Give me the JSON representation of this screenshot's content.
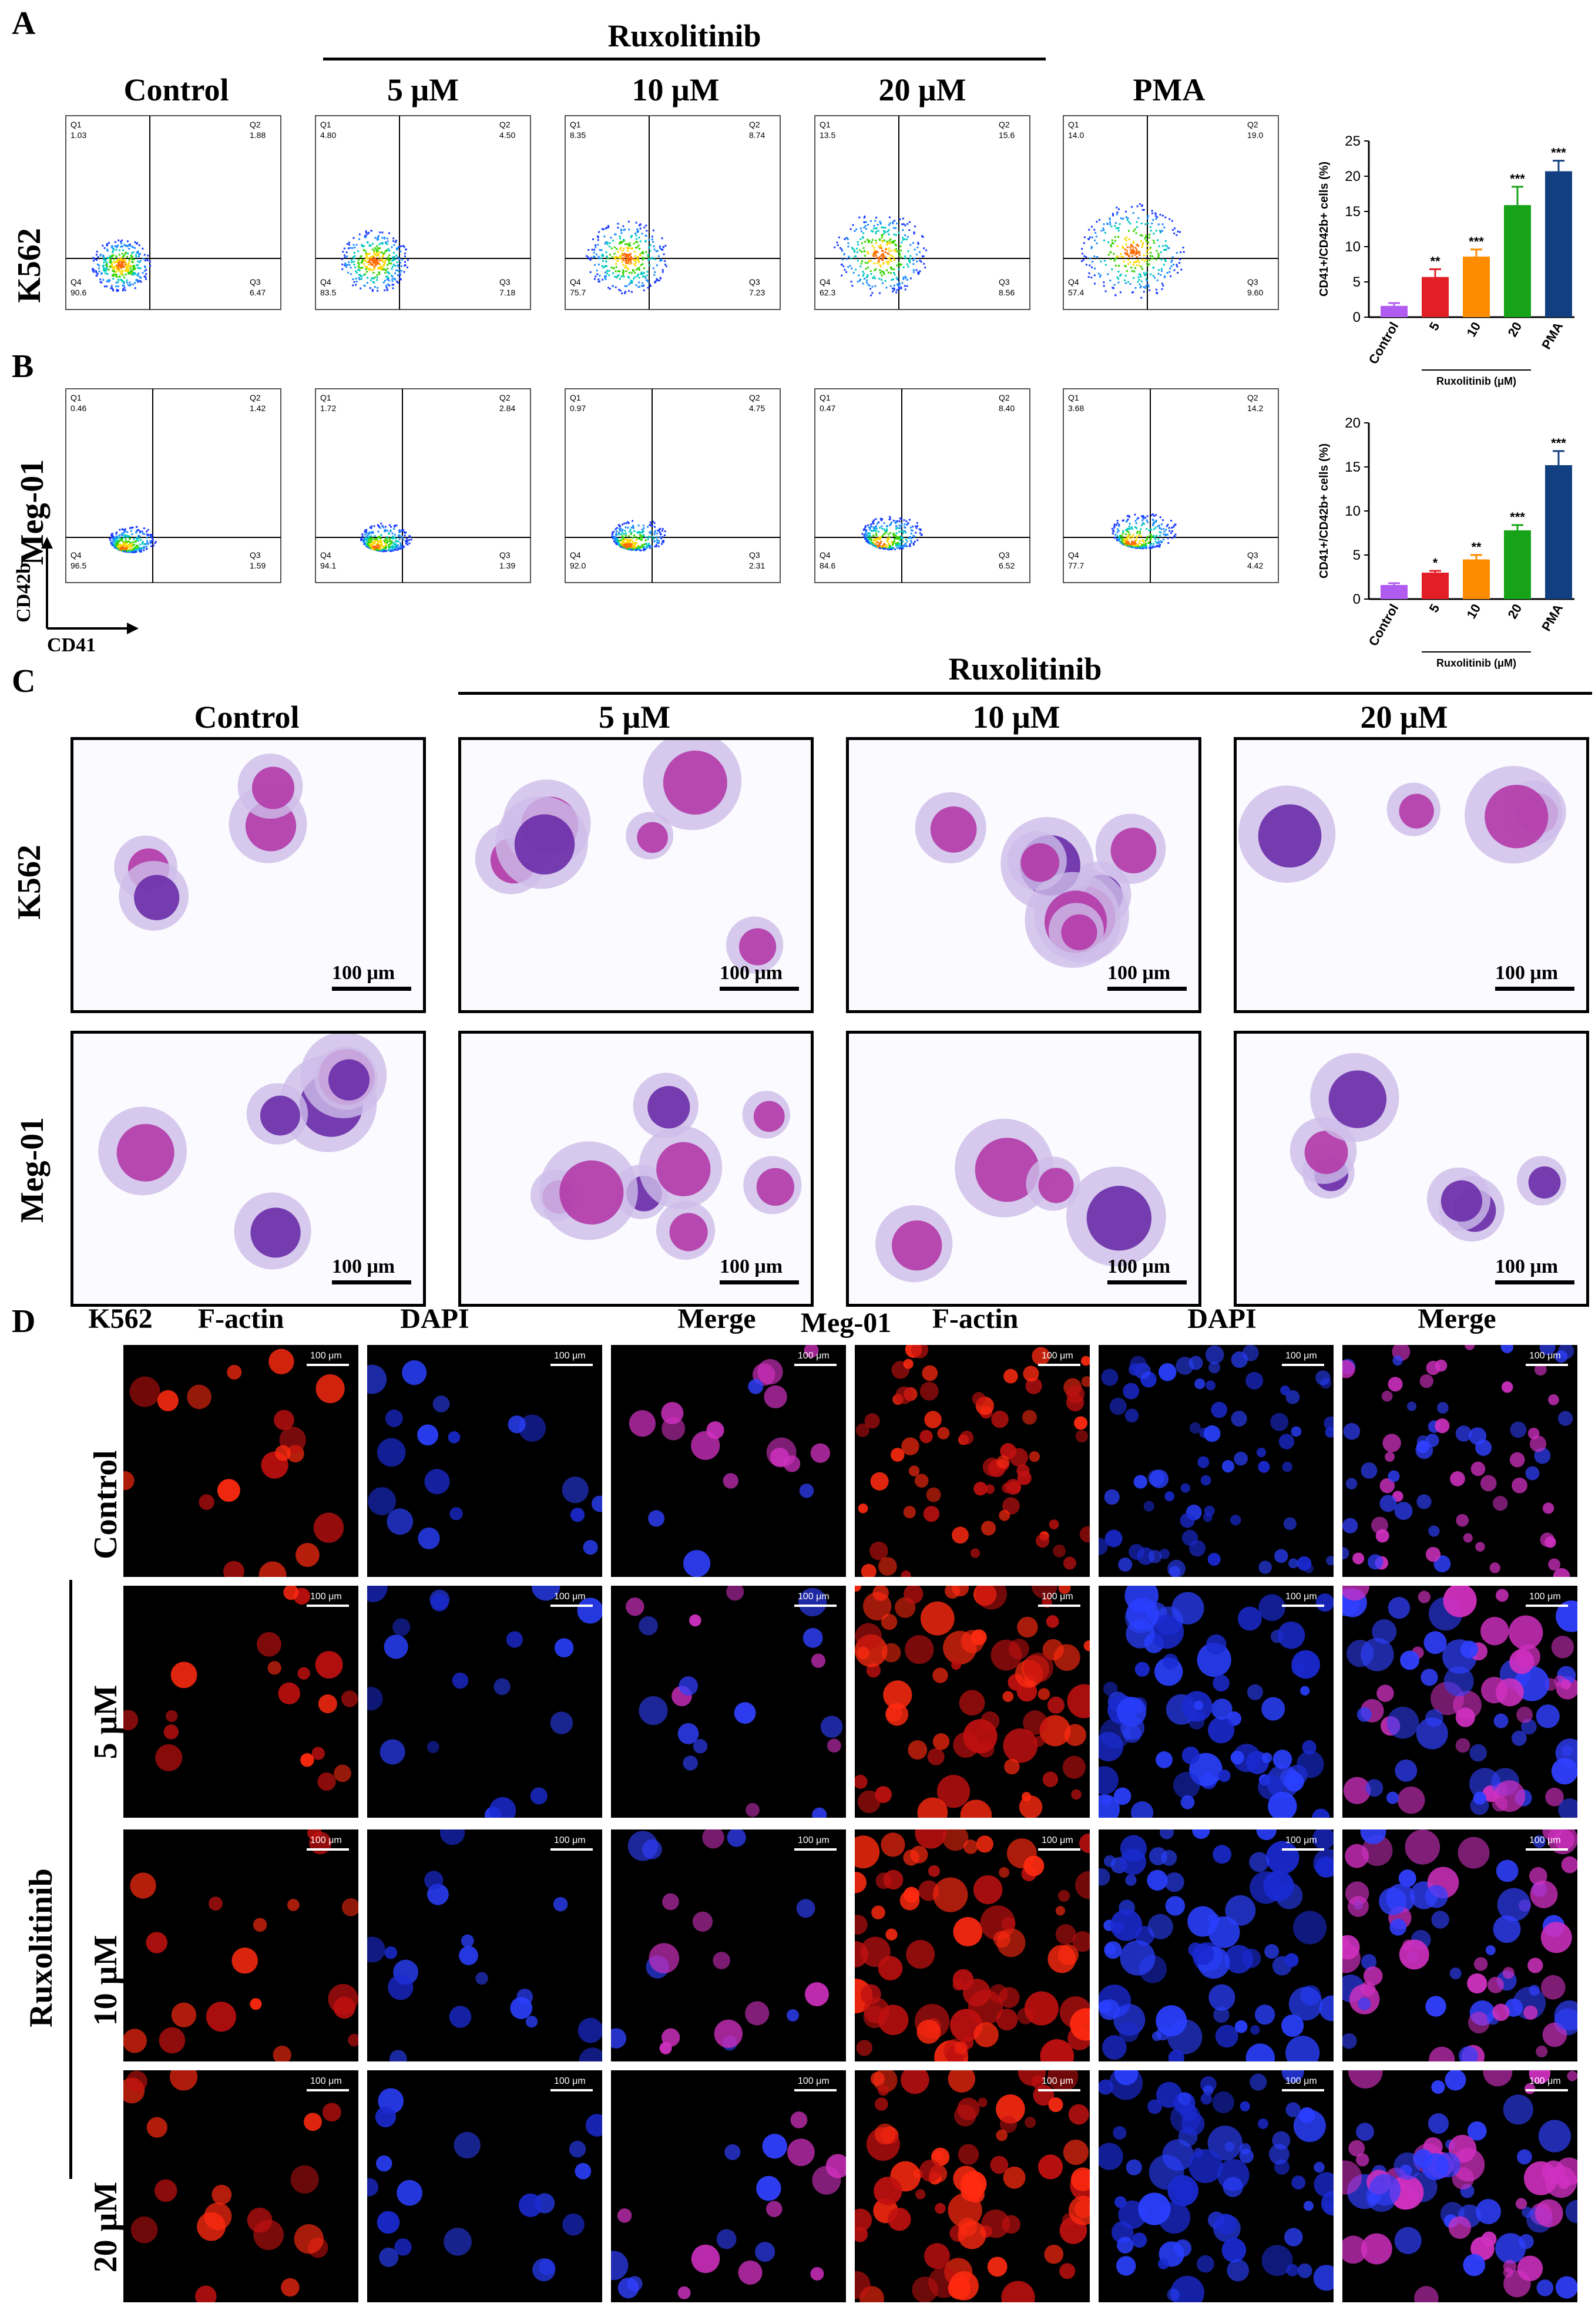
{
  "panel_A": {
    "letter": "A",
    "group_label": "Ruxolitinib",
    "columns": [
      "Control",
      "5 μM",
      "10 μM",
      "20 μM",
      "PMA"
    ],
    "row_label": "K562",
    "flow_plots": [
      {
        "q1": "1.03",
        "q2": "1.88",
        "q3": "6.47",
        "q4": "90.6"
      },
      {
        "q1": "4.80",
        "q2": "4.50",
        "q3": "7.18",
        "q4": "83.5"
      },
      {
        "q1": "8.35",
        "q2": "8.74",
        "q3": "7.23",
        "q4": "75.7"
      },
      {
        "q1": "13.5",
        "q2": "15.6",
        "q3": "8.56",
        "q4": "62.3"
      },
      {
        "q1": "14.0",
        "q2": "19.0",
        "q3": "9.60",
        "q4": "57.4"
      }
    ]
  },
  "panel_B": {
    "letter": "B",
    "row_label": "Meg-01",
    "axis_y": "CD42b",
    "axis_x": "CD41",
    "flow_plots": [
      {
        "q1": "0.46",
        "q2": "1.42",
        "q3": "1.59",
        "q4": "96.5"
      },
      {
        "q1": "1.72",
        "q2": "2.84",
        "q3": "1.39",
        "q4": "94.1"
      },
      {
        "q1": "0.97",
        "q2": "4.75",
        "q3": "2.31",
        "q4": "92.0"
      },
      {
        "q1": "0.47",
        "q2": "8.40",
        "q3": "6.52",
        "q4": "84.6"
      },
      {
        "q1": "3.68",
        "q2": "14.2",
        "q3": "4.42",
        "q4": "77.7"
      }
    ]
  },
  "panel_C": {
    "letter": "C",
    "group_label": "Ruxolitinib",
    "columns": [
      "Control",
      "5 μM",
      "10 μM",
      "20 μM"
    ],
    "rows": [
      "K562",
      "Meg-01"
    ],
    "scale_label": "100 μm"
  },
  "panel_D": {
    "letter": "D",
    "k562_header": "K562",
    "meg_header": "Meg-01",
    "channels": [
      "F-actin",
      "DAPI",
      "Merge"
    ],
    "rows": [
      "Control",
      "5 μM",
      "10 μM",
      "20 μM"
    ],
    "group_label": "Ruxolitinib",
    "scale_label": "100 μm"
  },
  "chart_data": [
    {
      "type": "bar",
      "categories": [
        "Control",
        "5",
        "10",
        "20",
        "PMA"
      ],
      "values": [
        1.6,
        5.7,
        8.6,
        15.9,
        20.7
      ],
      "errors": [
        0.4,
        1.1,
        1.0,
        2.6,
        1.5
      ],
      "significance": [
        "",
        "**",
        "***",
        "***",
        "***"
      ],
      "colors": [
        "#b15cf0",
        "#e21f26",
        "#ff8c00",
        "#17a317",
        "#123f7f"
      ],
      "ylabel": "CD41+/CD42b+ cells (%)",
      "xgroup_label": "Ruxolitinib (μM)",
      "ylim": [
        0,
        25
      ],
      "yticks": [
        0,
        5,
        10,
        15,
        20,
        25
      ]
    },
    {
      "type": "bar",
      "categories": [
        "Control",
        "5",
        "10",
        "20",
        "PMA"
      ],
      "values": [
        1.6,
        3.0,
        4.5,
        7.8,
        15.2
      ],
      "errors": [
        0.2,
        0.2,
        0.5,
        0.6,
        1.6
      ],
      "significance": [
        "",
        "*",
        "**",
        "***",
        "***"
      ],
      "colors": [
        "#b15cf0",
        "#e21f26",
        "#ff8c00",
        "#17a317",
        "#123f7f"
      ],
      "ylabel": "CD41+/CD42b+ cells (%)",
      "xgroup_label": "Ruxolitinib (μM)",
      "ylim": [
        0,
        20
      ],
      "yticks": [
        0,
        5,
        10,
        15,
        20
      ]
    }
  ]
}
